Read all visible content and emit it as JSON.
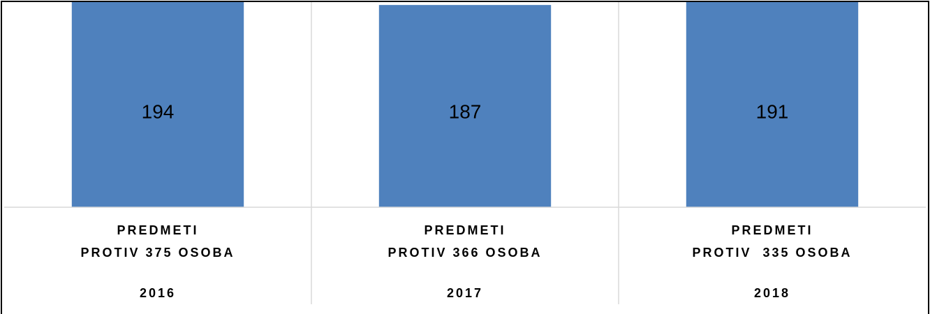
{
  "chart_data": {
    "type": "bar",
    "category_lines": [
      [
        "PREDMETI",
        "PROTIV 375 OSOBA"
      ],
      [
        "PREDMETI",
        "PROTIV 366 OSOBA"
      ],
      [
        "PREDMETI",
        "PROTIV  335 OSOBA"
      ]
    ],
    "categories": [
      "2016",
      "2017",
      "2018"
    ],
    "values": [
      194,
      187,
      191
    ],
    "color": "#4f81bd",
    "ylim": [
      0,
      180
    ],
    "grid": true
  }
}
